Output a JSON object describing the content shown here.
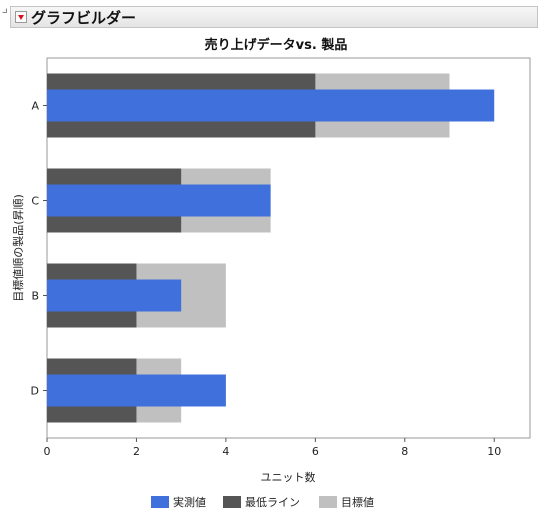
{
  "app": {
    "title": "グラフビルダー"
  },
  "chart_data": {
    "type": "bar",
    "orientation": "horizontal",
    "title": "売り上げデータvs. 製品",
    "xlabel": "ユニット数",
    "ylabel": "目標値順の製品(昇順)",
    "categories": [
      "A",
      "C",
      "B",
      "D"
    ],
    "xlim": [
      0,
      10.8
    ],
    "xticks": [
      0,
      2,
      4,
      6,
      8,
      10
    ],
    "grid": false,
    "legend_position": "bottom",
    "series": [
      {
        "name": "実測値",
        "values": [
          10,
          5,
          3,
          4
        ],
        "color": "#4070dc",
        "role": "foreground"
      },
      {
        "name": "最低ライン",
        "values": [
          6,
          3,
          2,
          2
        ],
        "color": "#555555",
        "role": "background"
      },
      {
        "name": "目標値",
        "values": [
          9,
          5,
          4,
          3
        ],
        "color": "#c0c0c0",
        "role": "background"
      }
    ]
  }
}
